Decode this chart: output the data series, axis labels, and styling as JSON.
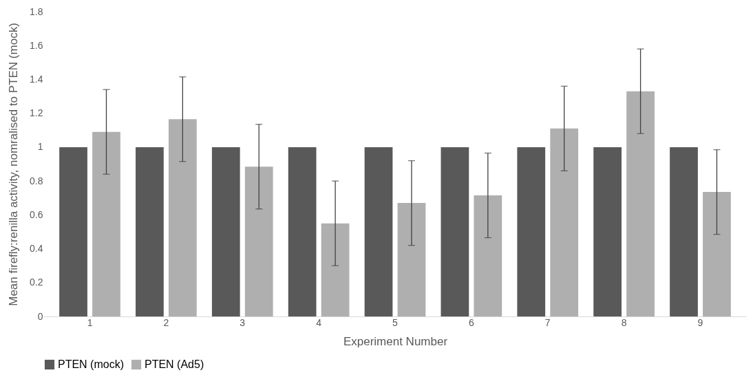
{
  "chart_data": {
    "type": "bar",
    "xlabel": "Experiment Number",
    "ylabel": "Mean firefly:renilla activity, nomralised to PTEN (mock)",
    "categories": [
      "1",
      "2",
      "3",
      "4",
      "5",
      "6",
      "7",
      "8",
      "9"
    ],
    "series": [
      {
        "name": "PTEN (mock)",
        "color": "#595959",
        "values": [
          1,
          1,
          1,
          1,
          1,
          1,
          1,
          1,
          1
        ]
      },
      {
        "name": "PTEN (Ad5)",
        "color": "#afafaf",
        "values": [
          1.09,
          1.165,
          0.885,
          0.55,
          0.67,
          0.715,
          1.11,
          1.33,
          0.735
        ],
        "errors": [
          0.25,
          0.25,
          0.25,
          0.25,
          0.25,
          0.25,
          0.25,
          0.25,
          0.25
        ]
      }
    ],
    "ylim": [
      0,
      1.8
    ],
    "yticks": [
      0,
      0.2,
      0.4,
      0.6,
      0.8,
      1,
      1.2,
      1.4,
      1.6,
      1.8
    ],
    "grid": false,
    "legend": "bottom"
  }
}
